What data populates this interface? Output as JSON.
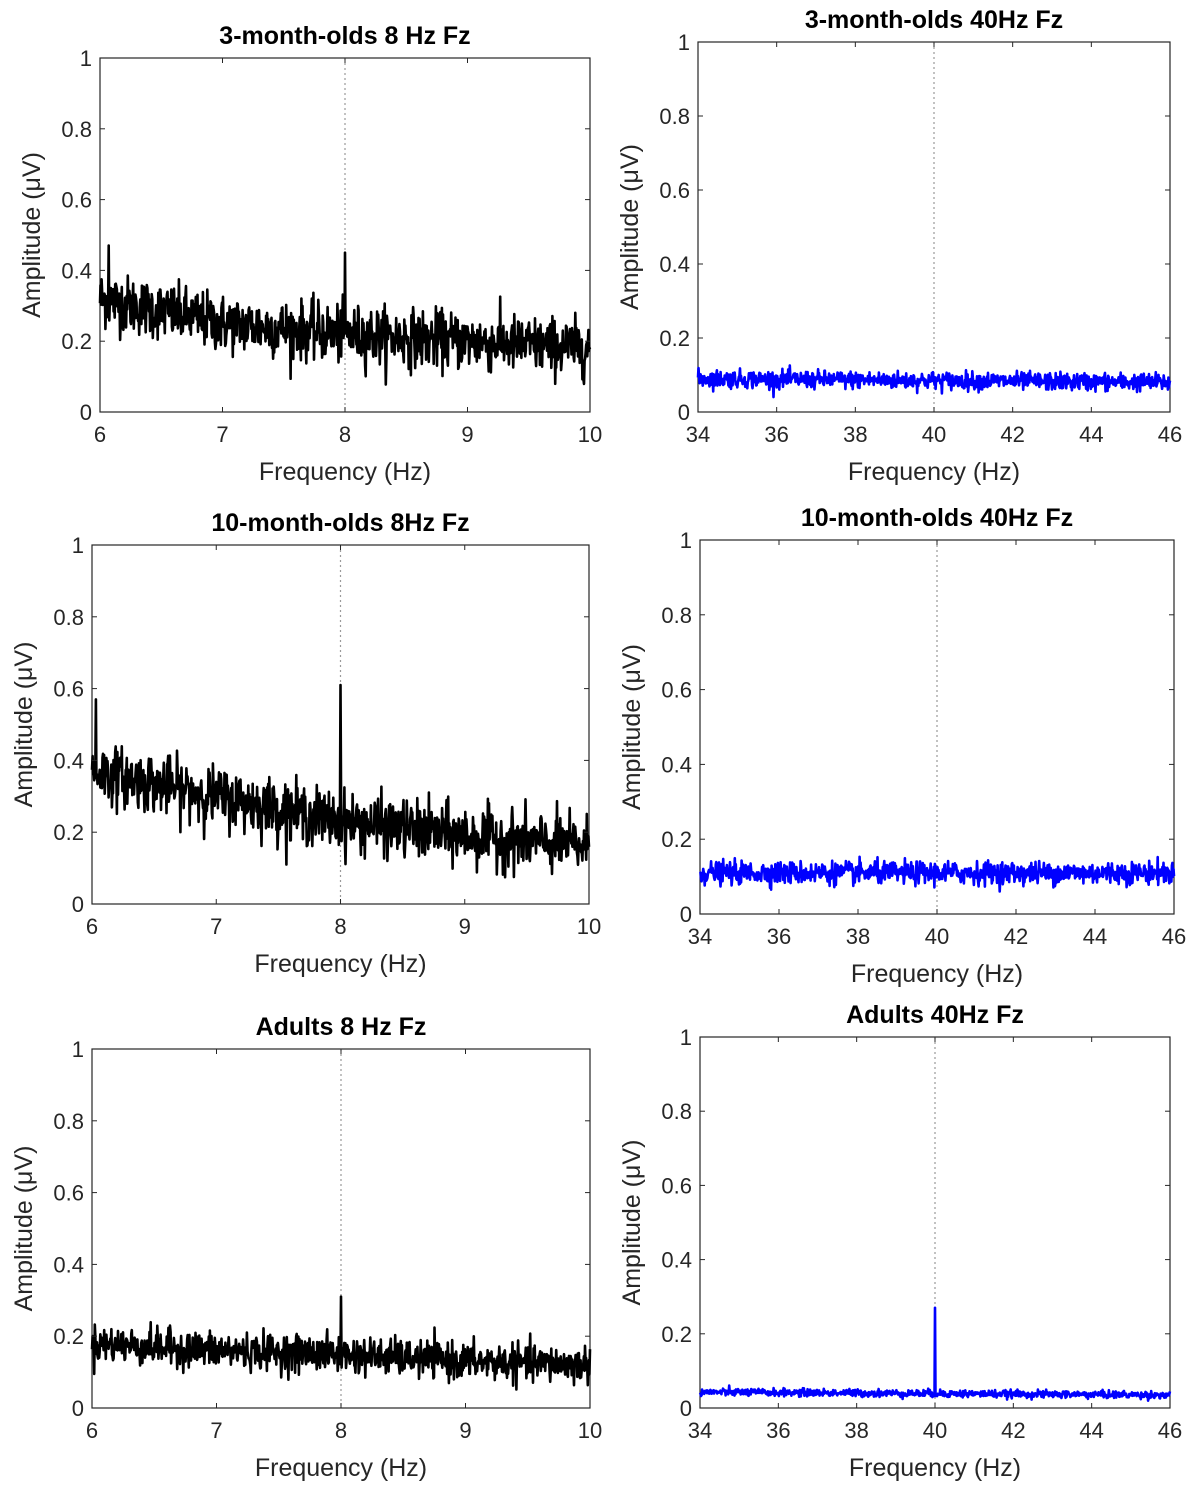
{
  "colors": {
    "black_series": "#000000",
    "blue_series": "#0000ff",
    "frame": "#262626",
    "marker_line": "#9a9a9a"
  },
  "chart_data": [
    {
      "type": "line",
      "title": "3-month-olds 8 Hz Fz",
      "xlabel": "Frequency (Hz)",
      "ylabel": "Amplitude (μV)",
      "xlim": [
        6,
        10
      ],
      "ylim": [
        0,
        1
      ],
      "xticks": [
        6,
        7,
        8,
        9,
        10
      ],
      "yticks": [
        0,
        0.2,
        0.4,
        0.6,
        0.8,
        1
      ],
      "grid": false,
      "stim_marker_x": 8,
      "series": [
        {
          "color": "#000000",
          "noise_sd": 0.04,
          "trend": [
            [
              6,
              0.32
            ],
            [
              7,
              0.25
            ],
            [
              8,
              0.22
            ],
            [
              9,
              0.2
            ],
            [
              10,
              0.18
            ]
          ],
          "peaks": [
            [
              6.07,
              0.47
            ],
            [
              8.0,
              0.45
            ]
          ]
        }
      ]
    },
    {
      "type": "line",
      "title": "3-month-olds 40Hz Fz",
      "xlabel": "Frequency (Hz)",
      "ylabel": "Amplitude (μV)",
      "xlim": [
        34,
        46
      ],
      "ylim": [
        0,
        1
      ],
      "xticks": [
        34,
        36,
        38,
        40,
        42,
        44,
        46
      ],
      "yticks": [
        0,
        0.2,
        0.4,
        0.6,
        0.8,
        1
      ],
      "grid": false,
      "stim_marker_x": 40,
      "series": [
        {
          "color": "#0000ff",
          "noise_sd": 0.012,
          "trend": [
            [
              34,
              0.09
            ],
            [
              46,
              0.08
            ]
          ],
          "peaks": []
        }
      ]
    },
    {
      "type": "line",
      "title": "10-month-olds 8Hz Fz",
      "xlabel": "Frequency (Hz)",
      "ylabel": "Amplitude (μV)",
      "xlim": [
        6,
        10
      ],
      "ylim": [
        0,
        1
      ],
      "xticks": [
        6,
        7,
        8,
        9,
        10
      ],
      "yticks": [
        0,
        0.2,
        0.4,
        0.6,
        0.8,
        1
      ],
      "grid": false,
      "stim_marker_x": 8,
      "series": [
        {
          "color": "#000000",
          "noise_sd": 0.04,
          "trend": [
            [
              6,
              0.37
            ],
            [
              7,
              0.3
            ],
            [
              8,
              0.23
            ],
            [
              9,
              0.19
            ],
            [
              10,
              0.16
            ]
          ],
          "peaks": [
            [
              6.03,
              0.57
            ],
            [
              8.0,
              0.61
            ]
          ]
        }
      ]
    },
    {
      "type": "line",
      "title": "10-month-olds 40Hz Fz",
      "xlabel": "Frequency (Hz)",
      "ylabel": "Amplitude (μV)",
      "xlim": [
        34,
        46
      ],
      "ylim": [
        0,
        1
      ],
      "xticks": [
        34,
        36,
        38,
        40,
        42,
        44,
        46
      ],
      "yticks": [
        0,
        0.2,
        0.4,
        0.6,
        0.8,
        1
      ],
      "grid": false,
      "stim_marker_x": 40,
      "series": [
        {
          "color": "#0000ff",
          "noise_sd": 0.015,
          "trend": [
            [
              34,
              0.11
            ],
            [
              46,
              0.11
            ]
          ],
          "peaks": []
        }
      ]
    },
    {
      "type": "line",
      "title": "Adults 8 Hz Fz",
      "xlabel": "Frequency (Hz)",
      "ylabel": "Amplitude (μV)",
      "xlim": [
        6,
        10
      ],
      "ylim": [
        0,
        1
      ],
      "xticks": [
        6,
        7,
        8,
        9,
        10
      ],
      "yticks": [
        0,
        0.2,
        0.4,
        0.6,
        0.8,
        1
      ],
      "grid": false,
      "stim_marker_x": 8,
      "series": [
        {
          "color": "#000000",
          "noise_sd": 0.025,
          "trend": [
            [
              6,
              0.18
            ],
            [
              7,
              0.16
            ],
            [
              8,
              0.15
            ],
            [
              9,
              0.13
            ],
            [
              10,
              0.12
            ]
          ],
          "peaks": [
            [
              8.0,
              0.31
            ]
          ]
        }
      ]
    },
    {
      "type": "line",
      "title": "Adults 40Hz Fz",
      "xlabel": "Frequency (Hz)",
      "ylabel": "Amplitude (μV)",
      "xlim": [
        34,
        46
      ],
      "ylim": [
        0,
        1
      ],
      "xticks": [
        34,
        36,
        38,
        40,
        42,
        44,
        46
      ],
      "yticks": [
        0,
        0.2,
        0.4,
        0.6,
        0.8,
        1
      ],
      "grid": false,
      "stim_marker_x": 40,
      "series": [
        {
          "color": "#0000ff",
          "noise_sd": 0.005,
          "trend": [
            [
              34,
              0.043
            ],
            [
              46,
              0.035
            ]
          ],
          "peaks": [
            [
              40.0,
              0.27
            ]
          ]
        }
      ]
    }
  ]
}
